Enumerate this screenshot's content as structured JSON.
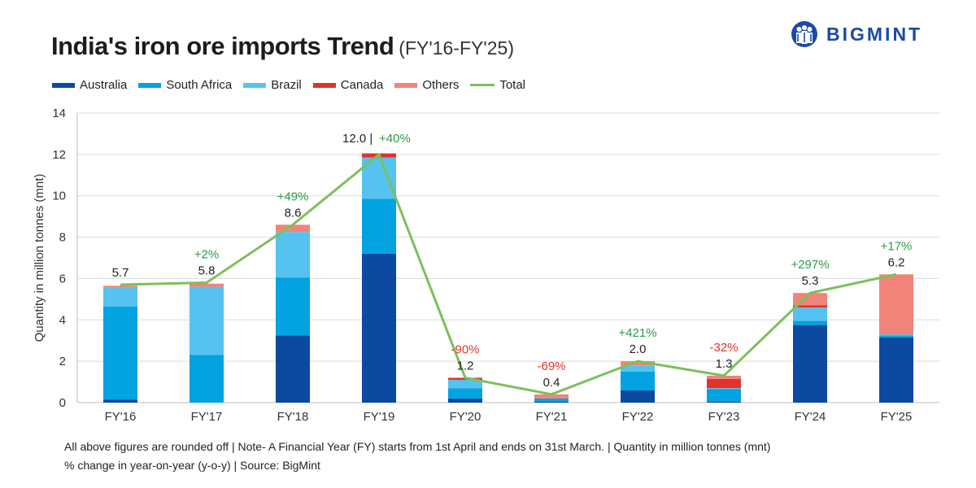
{
  "title": {
    "main": "India's iron ore imports Trend",
    "sub": "(FY'16-FY'25)"
  },
  "brand": {
    "name": "BIGMINT"
  },
  "legend": [
    {
      "label": "Australia",
      "color": "#0b4aa0",
      "kind": "bar"
    },
    {
      "label": "South Africa",
      "color": "#03a2e0",
      "kind": "bar"
    },
    {
      "label": "Brazil",
      "color": "#55c2ef",
      "kind": "bar"
    },
    {
      "label": "Canada",
      "color": "#e0332d",
      "kind": "bar"
    },
    {
      "label": "Others",
      "color": "#f2837a",
      "kind": "bar"
    },
    {
      "label": "Total",
      "color": "#7cc05a",
      "kind": "line"
    }
  ],
  "footer": {
    "line1": "All above figures are rounded off | Note- A Financial Year (FY) starts from 1st April and ends on 31st March. | Quantity in million tonnes (mnt)",
    "line2": "% change in year-on-year (y-o-y) | Source: BigMint"
  },
  "chart_data": {
    "type": "bar",
    "stacked": true,
    "title": "India's iron ore imports Trend (FY'16-FY'25)",
    "xlabel": "",
    "ylabel": "Quantity in million tonnes (mnt)",
    "ylim": [
      0,
      14
    ],
    "yticks": [
      0,
      2,
      4,
      6,
      8,
      10,
      12,
      14
    ],
    "categories": [
      "FY'16",
      "FY'17",
      "FY'18",
      "FY'19",
      "FY'20",
      "FY'21",
      "FY'22",
      "FY'23",
      "FY'24",
      "FY'25"
    ],
    "series": [
      {
        "name": "Australia",
        "color": "#0b4aa0",
        "values": [
          0.15,
          0.0,
          3.25,
          7.2,
          0.2,
          0.05,
          0.6,
          0.05,
          3.75,
          3.15
        ]
      },
      {
        "name": "South Africa",
        "color": "#03a2e0",
        "values": [
          4.5,
          2.3,
          2.8,
          2.65,
          0.5,
          0.15,
          0.9,
          0.6,
          0.2,
          0.1
        ]
      },
      {
        "name": "Brazil",
        "color": "#55c2ef",
        "values": [
          0.9,
          3.3,
          2.2,
          2.0,
          0.4,
          0.0,
          0.3,
          0.05,
          0.65,
          0.05
        ]
      },
      {
        "name": "Canada",
        "color": "#e0332d",
        "values": [
          0.0,
          0.0,
          0.0,
          0.2,
          0.1,
          0.0,
          0.0,
          0.45,
          0.1,
          0.0
        ]
      },
      {
        "name": "Others",
        "color": "#f2837a",
        "values": [
          0.1,
          0.15,
          0.35,
          0.0,
          0.0,
          0.2,
          0.2,
          0.15,
          0.6,
          2.9
        ]
      }
    ],
    "total": {
      "name": "Total",
      "color": "#7cc05a",
      "values": [
        5.7,
        5.8,
        8.6,
        12.0,
        1.2,
        0.4,
        2.0,
        1.3,
        5.3,
        6.2
      ],
      "labels": [
        "5.7",
        "5.8",
        "8.6",
        "12.0",
        "1.2",
        "0.4",
        "2.0",
        "1.3",
        "5.3",
        "6.2"
      ]
    },
    "yoy_change": [
      "",
      "+2%",
      "+49%",
      "+40%",
      "-90%",
      "-69%",
      "+421%",
      "-32%",
      "+297%",
      "+17%"
    ],
    "yoy_colors": {
      "positive": "#2e9a46",
      "negative": "#e0332d"
    },
    "grid": true,
    "legend_position": "top-left"
  }
}
